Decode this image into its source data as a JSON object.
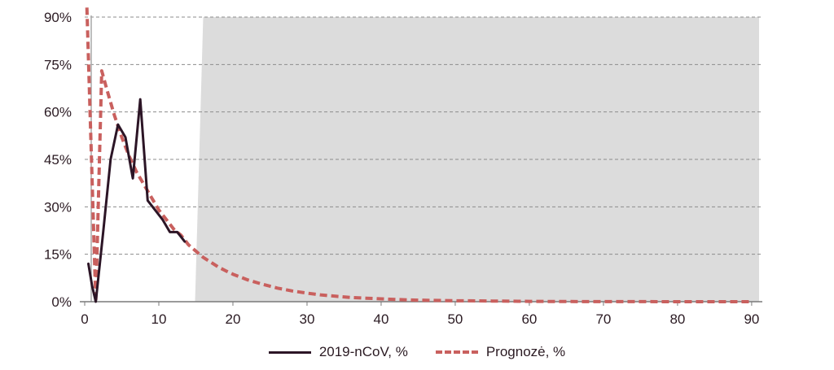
{
  "chart_data": {
    "type": "line",
    "title": "",
    "xlabel": "",
    "ylabel": "",
    "xlim": [
      0,
      91
    ],
    "ylim": [
      0,
      90
    ],
    "x_ticks": [
      0,
      10,
      20,
      30,
      40,
      50,
      60,
      70,
      80,
      90
    ],
    "y_ticks": [
      0,
      15,
      30,
      45,
      60,
      75,
      90
    ],
    "y_tick_labels": [
      "0%",
      "15%",
      "30%",
      "45%",
      "60%",
      "75%",
      "90%"
    ],
    "grid": "horizontal dashed",
    "shaded_region": {
      "x_start": 15,
      "x_end": 91,
      "color": "#dcdcdc"
    },
    "legend_position": "bottom",
    "series": [
      {
        "name": "2019-nCoV, %",
        "style": "solid",
        "color": "#2c1526",
        "x": [
          0.5,
          1,
          1.5,
          2.5,
          3.5,
          4.5,
          5.5,
          6.5,
          7.5,
          8.5,
          9.5,
          10.5,
          11.5,
          12.5,
          13.5
        ],
        "y": [
          12,
          5,
          0,
          22,
          45,
          56,
          52,
          39,
          64,
          32,
          29,
          26,
          22,
          22,
          19
        ]
      },
      {
        "name": "Prognozė, %",
        "style": "dashed",
        "color": "#c9605e",
        "x": [
          0.3,
          1.5,
          2.3,
          3,
          4,
          5,
          6,
          7,
          8,
          9,
          10,
          11,
          12,
          13,
          14,
          15,
          16,
          17,
          18,
          19,
          20,
          22,
          24,
          26,
          28,
          30,
          32,
          34,
          36,
          38,
          40,
          42,
          45,
          50,
          55,
          60,
          65,
          70,
          75,
          80,
          85,
          90
        ],
        "y": [
          93,
          0,
          73,
          67,
          59,
          52,
          46,
          41,
          37,
          33,
          29,
          26,
          23,
          21,
          18,
          16,
          14,
          12.5,
          11,
          9.8,
          8.7,
          6.9,
          5.5,
          4.3,
          3.4,
          2.7,
          2.1,
          1.7,
          1.3,
          1.1,
          0.9,
          0.7,
          0.5,
          0.3,
          0.2,
          0.1,
          0.05,
          0.03,
          0.02,
          0.01,
          0.01,
          0.0
        ]
      }
    ]
  },
  "legend": {
    "items": [
      {
        "label": "2019-nCoV, %"
      },
      {
        "label": "Prognozė, %"
      }
    ]
  }
}
